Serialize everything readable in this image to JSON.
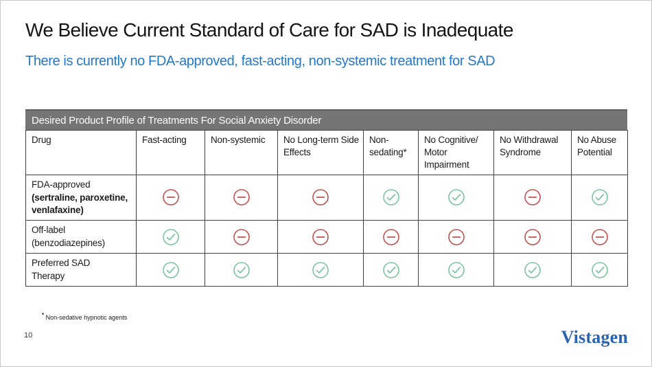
{
  "slide": {
    "title": "We Believe Current Standard of Care for SAD is Inadequate",
    "subtitle": "There is currently no FDA-approved, fast-acting, non-systemic treatment for SAD",
    "page_number": "10",
    "logo_text": "Vistagen"
  },
  "footnote": {
    "marker": "*",
    "text": " Non-sedative hypnotic agents"
  },
  "colors": {
    "subtitle_blue": "#2478c8",
    "band_gray": "#757575",
    "check_green": "#7cc39e",
    "minus_red": "#c1504e",
    "logo_blue": "#2c63b0"
  },
  "table": {
    "title": "Desired Product Profile of Treatments For Social Anxiety Disorder",
    "columns": [
      "Drug",
      "Fast-acting",
      "Non-systemic",
      "No Long-term Side Effects",
      "Non-sedating*",
      "No Cognitive/ Motor Impairment",
      "No Withdrawal Syndrome",
      "No Abuse Potential"
    ],
    "rows": [
      {
        "drug_lines": [
          {
            "text": "FDA-approved",
            "bold": false
          },
          {
            "text": "(sertraline, paroxetine,",
            "bold": true
          },
          {
            "text": "venlafaxine)",
            "bold": true
          }
        ],
        "values": [
          "minus",
          "minus",
          "minus",
          "check",
          "check",
          "minus",
          "check"
        ]
      },
      {
        "drug_lines": [
          {
            "text": "Off-label",
            "bold": false
          },
          {
            "text": "(benzodiazepines)",
            "bold": false
          }
        ],
        "values": [
          "check",
          "minus",
          "minus",
          "minus",
          "minus",
          "minus",
          "minus"
        ]
      },
      {
        "drug_lines": [
          {
            "text": "Preferred SAD",
            "bold": false
          },
          {
            "text": "Therapy",
            "bold": false
          }
        ],
        "values": [
          "check",
          "check",
          "check",
          "check",
          "check",
          "check",
          "check"
        ]
      }
    ]
  }
}
